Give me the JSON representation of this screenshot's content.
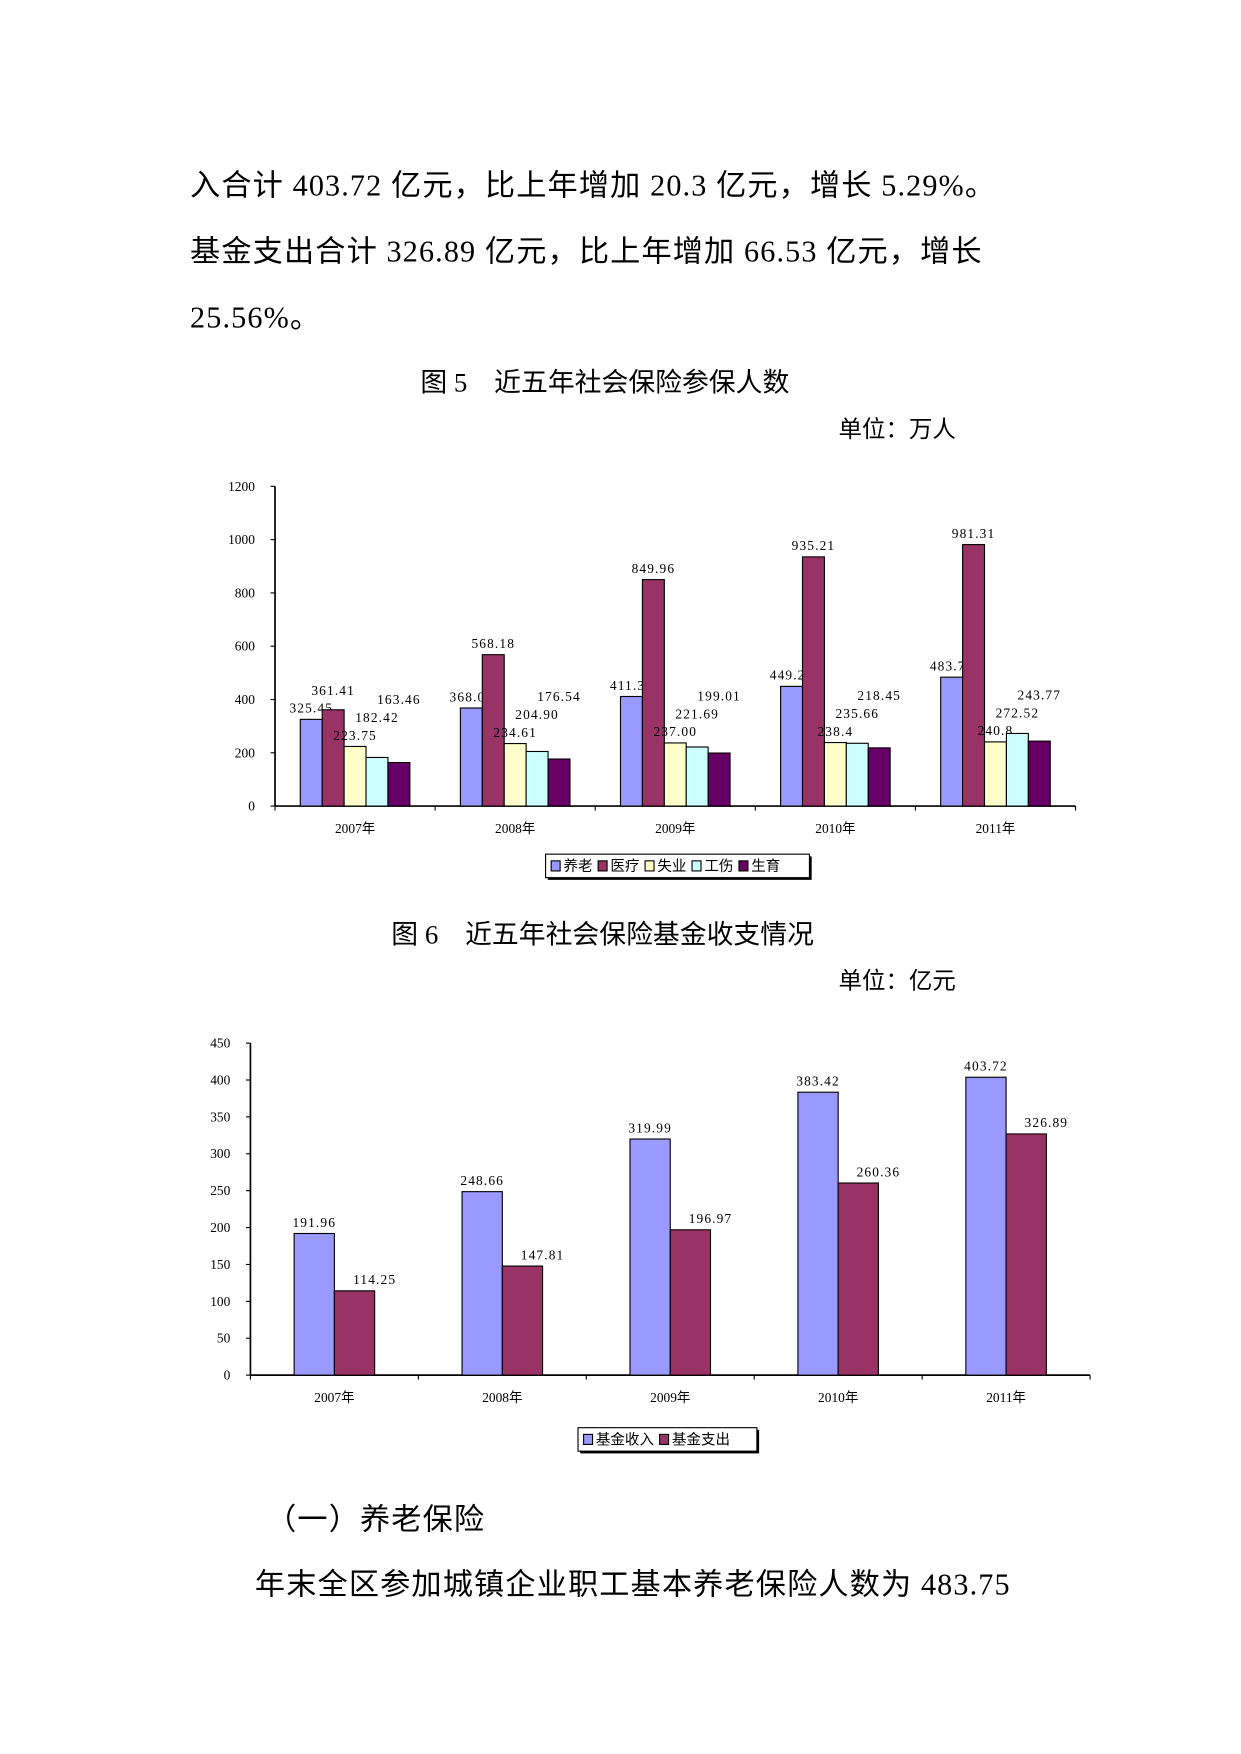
{
  "text": {
    "line1": "入合计 403.72 亿元，比上年增加 20.3 亿元，增长 5.29%。",
    "line2": "基金支出合计 326.89 亿元，比上年增加 66.53 亿元，增长",
    "line3": "25.56%。",
    "section_heading": "（一）养老保险",
    "last_line": "年末全区参加城镇企业职工基本养老保险人数为 483.75"
  },
  "figure5": {
    "title": "图 5　近五年社会保险参保人数",
    "unit": "单位：万人"
  },
  "figure6": {
    "title": "图 6　近五年社会保险基金收支情况",
    "unit": "单位：亿元"
  },
  "chart_data": [
    {
      "type": "bar",
      "title": "图 5　近五年社会保险参保人数",
      "categories": [
        "2007年",
        "2008年",
        "2009年",
        "2010年",
        "2011年"
      ],
      "ylim": [
        0,
        1200
      ],
      "yticks": [
        0,
        200,
        400,
        600,
        800,
        1000,
        1200
      ],
      "legend": "bottom",
      "series": [
        {
          "name": "养老",
          "color": "#9999FF",
          "values": [
            325.45,
            368.05,
            411.32,
            449.29,
            483.75
          ],
          "labels": [
            "325.45",
            "368.05",
            "411.32",
            "449.29",
            "483.75"
          ]
        },
        {
          "name": "医疗",
          "color": "#993366",
          "values": [
            361.41,
            568.18,
            849.96,
            935.21,
            981.31
          ],
          "labels": [
            "361.41",
            "568.18",
            "849.96",
            "935.21",
            "981.31"
          ]
        },
        {
          "name": "失业",
          "color": "#FFFFCC",
          "values": [
            223.75,
            234.61,
            237.0,
            238.4,
            240.8
          ],
          "labels": [
            "223.75",
            "234.61",
            "237.00",
            "238.4",
            "240.8"
          ]
        },
        {
          "name": "工伤",
          "color": "#CCFFFF",
          "values": [
            182.42,
            204.9,
            221.69,
            235.66,
            272.52
          ],
          "labels": [
            "182.42",
            "204.90",
            "221.69",
            "235.66",
            "272.52"
          ]
        },
        {
          "name": "生育",
          "color": "#660066",
          "values": [
            163.46,
            176.54,
            199.01,
            218.45,
            243.77
          ],
          "labels": [
            "163.46",
            "176.54",
            "199.01",
            "218.45",
            "243.77"
          ]
        }
      ]
    },
    {
      "type": "bar",
      "title": "图 6　近五年社会保险基金收支情况",
      "categories": [
        "2007年",
        "2008年",
        "2009年",
        "2010年",
        "2011年"
      ],
      "ylim": [
        0,
        450
      ],
      "yticks": [
        0,
        50,
        100,
        150,
        200,
        250,
        300,
        350,
        400,
        450
      ],
      "legend": "bottom",
      "series": [
        {
          "name": "基金收入",
          "color": "#9999FF",
          "values": [
            191.96,
            248.66,
            319.99,
            383.42,
            403.72
          ],
          "labels": [
            "191.96",
            "248.66",
            "319.99",
            "383.42",
            "403.72"
          ]
        },
        {
          "name": "基金支出",
          "color": "#993366",
          "values": [
            114.25,
            147.81,
            196.97,
            260.36,
            326.89
          ],
          "labels": [
            "114.25",
            "147.81",
            "196.97",
            "260.36",
            "326.89"
          ]
        }
      ]
    }
  ]
}
